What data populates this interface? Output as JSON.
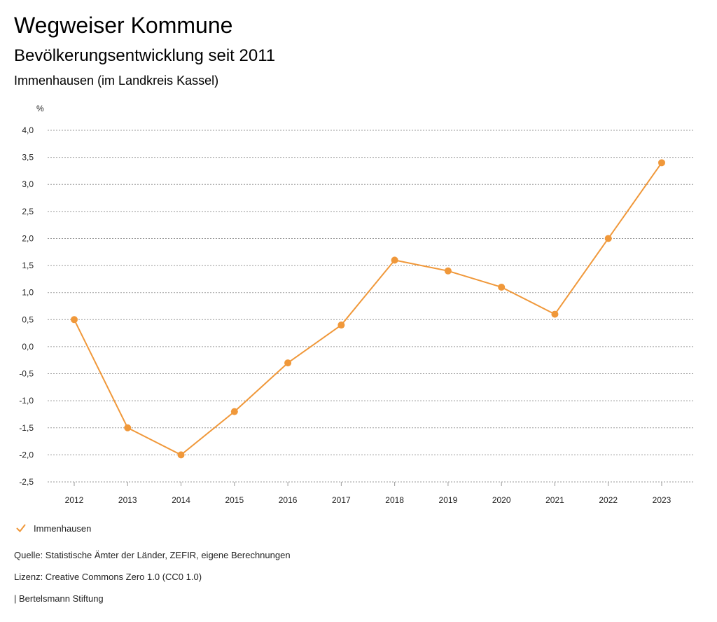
{
  "header": {
    "title": "Wegweiser Kommune",
    "subtitle": "Bevölkerungsentwicklung seit 2011",
    "region": "Immenhausen (im Landkreis Kassel)"
  },
  "chart_data": {
    "type": "line",
    "ylabel": "%",
    "ylim": [
      -2.5,
      4.0
    ],
    "yticks": [
      4.0,
      3.5,
      3.0,
      2.5,
      2.0,
      1.5,
      1.0,
      0.5,
      0.0,
      -0.5,
      -1.0,
      -1.5,
      -2.0,
      -2.5
    ],
    "ytick_labels": [
      "4,0",
      "3,5",
      "3,0",
      "2,5",
      "2,0",
      "1,5",
      "1,0",
      "0,5",
      "0,0",
      "-0,5",
      "-1,0",
      "-1,5",
      "-2,0",
      "-2,5"
    ],
    "categories": [
      "2012",
      "2013",
      "2014",
      "2015",
      "2016",
      "2017",
      "2018",
      "2019",
      "2020",
      "2021",
      "2022",
      "2023"
    ],
    "series": [
      {
        "name": "Immenhausen",
        "color": "#f0983a",
        "values": [
          0.5,
          -1.5,
          -2.0,
          -1.2,
          -0.3,
          0.4,
          1.6,
          1.4,
          1.1,
          0.6,
          2.0,
          3.4
        ]
      }
    ],
    "grid": true,
    "grid_style": "dotted",
    "legend_position": "bottom-left"
  },
  "legend": {
    "label": "Immenhausen",
    "icon": "check-icon"
  },
  "footer": {
    "source": "Quelle: Statistische Ämter der Länder, ZEFIR, eigene Berechnungen",
    "license": "Lizenz: Creative Commons Zero 1.0 (CC0 1.0)",
    "publisher": "| Bertelsmann Stiftung"
  }
}
